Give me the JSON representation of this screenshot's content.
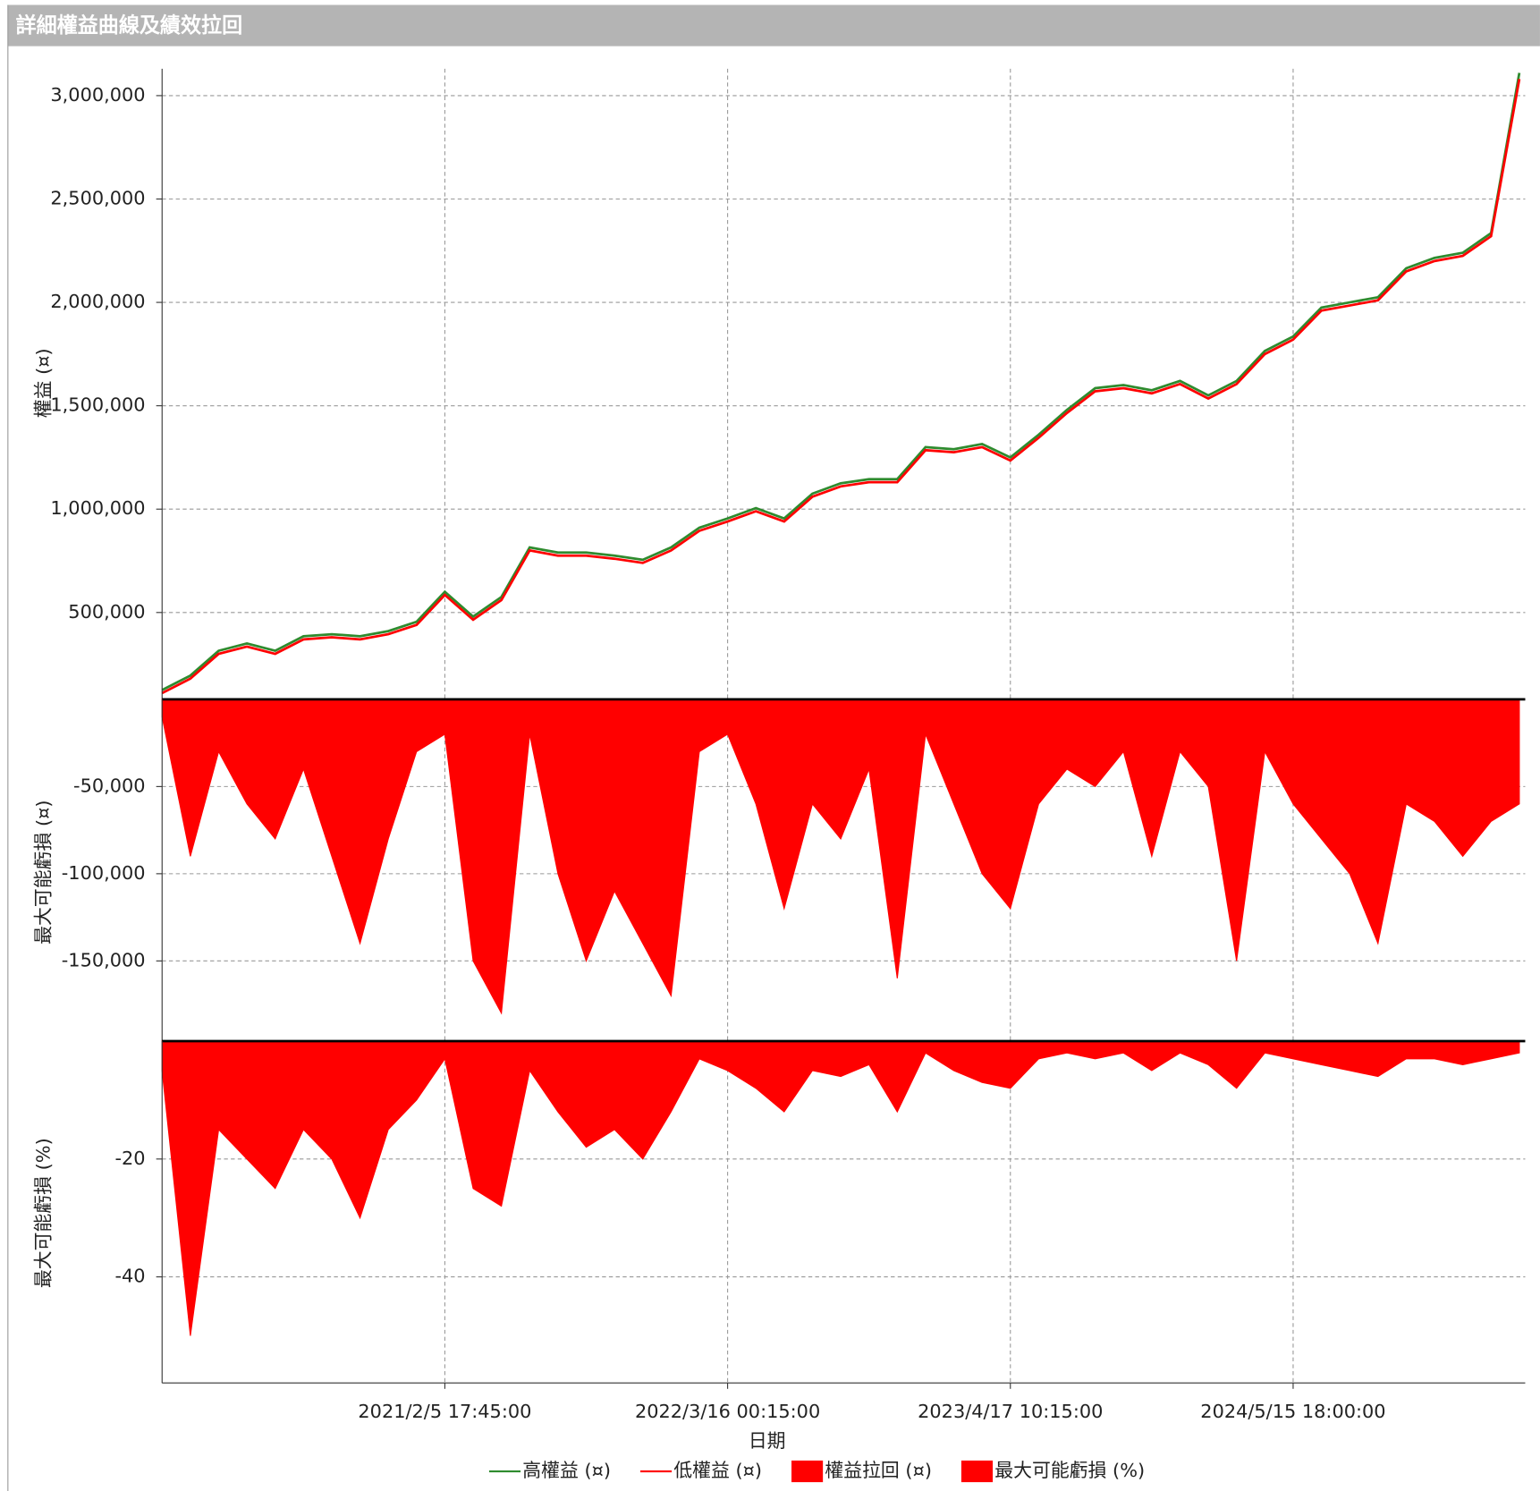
{
  "chart_data": [
    {
      "type": "line",
      "title": "詳細權益曲線及績效拉回",
      "y_label": "權益 (¤)",
      "ylim": [
        80000,
        3130000
      ],
      "yticks": [
        {
          "value": 500000,
          "label": "500,000"
        },
        {
          "value": 1000000,
          "label": "1,000,000"
        },
        {
          "value": 1500000,
          "label": "1,500,000"
        },
        {
          "value": 2000000,
          "label": "2,000,000"
        },
        {
          "value": 2500000,
          "label": "2,500,000"
        },
        {
          "value": 3000000,
          "label": "3,000,000"
        }
      ],
      "grid": true,
      "series": [
        {
          "name": "高權益 (¤)",
          "color": "#2e8b2e",
          "values": [
            125000,
            195000,
            315000,
            350000,
            315000,
            385000,
            395000,
            385000,
            410000,
            455000,
            600000,
            480000,
            575000,
            815000,
            790000,
            790000,
            775000,
            755000,
            815000,
            910000,
            955000,
            1005000,
            955000,
            1075000,
            1125000,
            1145000,
            1145000,
            1300000,
            1290000,
            1315000,
            1250000,
            1360000,
            1480000,
            1585000,
            1600000,
            1575000,
            1620000,
            1550000,
            1620000,
            1765000,
            1835000,
            1975000,
            2000000,
            2025000,
            2165000,
            2215000,
            2240000,
            2335000,
            3110000
          ]
        },
        {
          "name": "低權益 (¤)",
          "color": "#ff0000",
          "values": [
            110000,
            180000,
            300000,
            335000,
            300000,
            370000,
            380000,
            370000,
            395000,
            440000,
            585000,
            465000,
            560000,
            800000,
            775000,
            775000,
            760000,
            740000,
            800000,
            895000,
            940000,
            990000,
            940000,
            1060000,
            1110000,
            1130000,
            1130000,
            1285000,
            1275000,
            1300000,
            1235000,
            1345000,
            1465000,
            1570000,
            1585000,
            1560000,
            1605000,
            1535000,
            1605000,
            1750000,
            1820000,
            1960000,
            1985000,
            2010000,
            2150000,
            2200000,
            2225000,
            2320000,
            3080000
          ]
        }
      ]
    },
    {
      "type": "area",
      "y_label": "最大可能虧損 (¤)",
      "ylim": [
        -196000,
        0
      ],
      "yticks": [
        {
          "value": -150000,
          "label": "-150,000"
        },
        {
          "value": -100000,
          "label": "-100,000"
        },
        {
          "value": -50000,
          "label": "-50,000"
        }
      ],
      "grid": true,
      "series": [
        {
          "name": "權益拉回 (¤)",
          "color": "#ff0000",
          "values": [
            -10000,
            -90000,
            -30000,
            -60000,
            -80000,
            -40000,
            -90000,
            -140000,
            -80000,
            -30000,
            -20000,
            -150000,
            -180000,
            -20000,
            -100000,
            -150000,
            -110000,
            -140000,
            -170000,
            -30000,
            -20000,
            -60000,
            -120000,
            -60000,
            -80000,
            -40000,
            -160000,
            -20000,
            -60000,
            -100000,
            -120000,
            -60000,
            -40000,
            -50000,
            -30000,
            -90000,
            -30000,
            -50000,
            -150000,
            -30000,
            -60000,
            -80000,
            -100000,
            -140000,
            -60000,
            -70000,
            -90000,
            -70000,
            -60000
          ]
        }
      ]
    },
    {
      "type": "area",
      "y_label": "最大可能虧損 (%)",
      "x_label": "日期",
      "ylim": [
        -58,
        0
      ],
      "yticks": [
        -40,
        -20
      ],
      "grid": true,
      "legend": "bottom",
      "categories": [
        null,
        null,
        null,
        null,
        null,
        null,
        null,
        null,
        null,
        null,
        "2021/2/5 17:45:00",
        null,
        null,
        null,
        null,
        null,
        null,
        null,
        null,
        null,
        "2022/3/16 00:15:00",
        null,
        null,
        null,
        null,
        null,
        null,
        null,
        null,
        null,
        "2023/4/17 10:15:00",
        null,
        null,
        null,
        null,
        null,
        null,
        null,
        null,
        null,
        "2024/5/15 18:00:00",
        null,
        null,
        null,
        null,
        null,
        null,
        null,
        null
      ],
      "series": [
        {
          "name": "最大可能虧損 (%)",
          "color": "#ff0000",
          "values": [
            -5,
            -50,
            -15,
            -20,
            -25,
            -15,
            -20,
            -30,
            -15,
            -10,
            -3,
            -25,
            -28,
            -5,
            -12,
            -18,
            -15,
            -20,
            -12,
            -3,
            -5,
            -8,
            -12,
            -5,
            -6,
            -4,
            -12,
            -2,
            -5,
            -7,
            -8,
            -3,
            -2,
            -3,
            -2,
            -5,
            -2,
            -4,
            -8,
            -2,
            -3,
            -4,
            -5,
            -6,
            -3,
            -3,
            -4,
            -3,
            -2
          ]
        }
      ]
    }
  ]
}
